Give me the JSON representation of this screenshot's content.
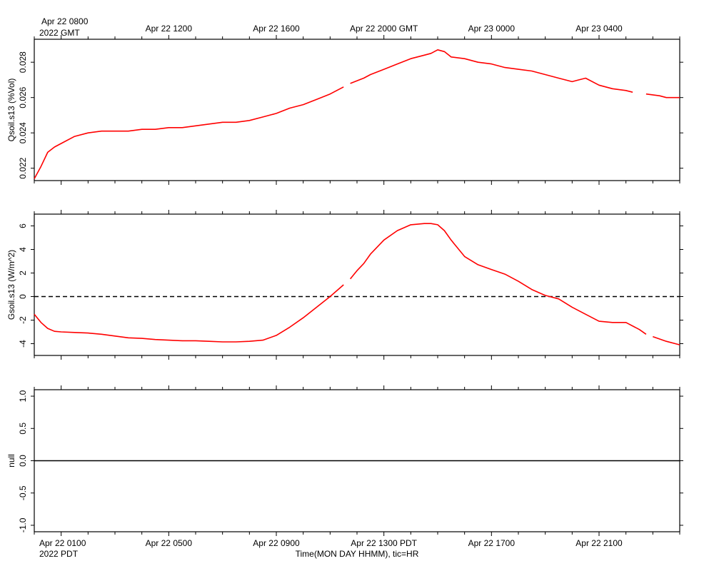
{
  "top_time_axis": {
    "tick_labels": [
      "Apr 22 0800",
      "Apr 22 1200",
      "Apr 22 1600",
      "Apr 22 2000 GMT",
      "Apr 23 0000",
      "Apr 23 0400"
    ],
    "year_label": "2022 GMT"
  },
  "bottom_time_axis": {
    "tick_labels": [
      "Apr 22 0100",
      "Apr 22 0500",
      "Apr 22 0900",
      "Apr 22 1300 PDT",
      "Apr 22 1700",
      "Apr 22 2100"
    ],
    "year_label": "2022 PDT",
    "xlabel": "Time(MON DAY HHMM), tic=HR"
  },
  "colors": {
    "series": "#ff0000",
    "axes": "#000000",
    "zero_line": "#000000"
  },
  "chart_data": [
    {
      "type": "line",
      "ylabel": "Qsoil.s13 (%Vol)",
      "ylim": [
        0.0213,
        0.0293
      ],
      "yticks": [
        "0.022",
        "0.024",
        "0.026",
        "0.028"
      ],
      "xlim_hours_pdt": [
        0.0,
        24.0
      ],
      "grid": false,
      "series": [
        {
          "x_hours_pdt": [
            0.0,
            0.25,
            0.5,
            0.75,
            1.0,
            1.5,
            2.0,
            2.5,
            3.0,
            3.5,
            4.0,
            4.5,
            5.0,
            5.5,
            6.0,
            6.5,
            7.0,
            7.5,
            8.0,
            8.5,
            9.0,
            9.5,
            10.0,
            10.5,
            11.0,
            11.5,
            11.75,
            12.25,
            12.5,
            13.0,
            13.5,
            14.0,
            14.5,
            14.75,
            15.0,
            15.25,
            15.5,
            16.0,
            16.5,
            17.0,
            17.5,
            18.0,
            18.5,
            19.0,
            19.5,
            20.0,
            20.25,
            20.5,
            21.0,
            21.5,
            22.0,
            22.25,
            22.75,
            23.25,
            23.5,
            24.0
          ],
          "y": [
            0.0214,
            0.0221,
            0.0229,
            0.0232,
            0.0234,
            0.0238,
            0.024,
            0.0241,
            0.0241,
            0.0241,
            0.0242,
            0.0242,
            0.0243,
            0.0243,
            0.0244,
            0.0245,
            0.0246,
            0.0246,
            0.0247,
            0.0249,
            0.0251,
            0.0254,
            0.0256,
            0.0259,
            0.0262,
            0.0266,
            0.0268,
            0.0271,
            0.0273,
            0.0276,
            0.0279,
            0.0282,
            0.0284,
            0.0285,
            0.0287,
            0.0286,
            0.0283,
            0.0282,
            0.028,
            0.0279,
            0.0277,
            0.0276,
            0.0275,
            0.0273,
            0.0271,
            0.0269,
            0.027,
            0.0271,
            0.0267,
            0.0265,
            0.0264,
            0.0263,
            0.0262,
            0.0261,
            0.026,
            0.026
          ],
          "gaps_after_index": [
            25,
            51
          ]
        }
      ]
    },
    {
      "type": "line",
      "ylabel": "Gsoil.s13 (W/m^2)",
      "ylim": [
        -5,
        7
      ],
      "yticks": [
        "-4",
        "-2",
        "0",
        "2",
        "4",
        "6"
      ],
      "reference_line": {
        "y": 0,
        "style": "dashed"
      },
      "xlim_hours_pdt": [
        0.0,
        24.0
      ],
      "grid": false,
      "series": [
        {
          "x_hours_pdt": [
            0.0,
            0.25,
            0.5,
            0.75,
            1.0,
            1.5,
            2.0,
            2.5,
            3.0,
            3.5,
            4.0,
            4.5,
            5.0,
            5.5,
            6.0,
            6.5,
            7.0,
            7.5,
            8.0,
            8.5,
            9.0,
            9.5,
            10.0,
            10.5,
            11.0,
            11.5,
            11.75,
            12.0,
            12.25,
            12.5,
            13.0,
            13.5,
            14.0,
            14.5,
            14.75,
            15.0,
            15.25,
            15.5,
            16.0,
            16.5,
            17.0,
            17.5,
            18.0,
            18.5,
            19.0,
            19.5,
            20.0,
            20.5,
            21.0,
            21.5,
            22.0,
            22.5,
            22.75,
            23.0,
            23.5,
            24.0
          ],
          "y": [
            -1.5,
            -2.2,
            -2.7,
            -2.95,
            -3.0,
            -3.05,
            -3.1,
            -3.2,
            -3.35,
            -3.5,
            -3.55,
            -3.65,
            -3.7,
            -3.75,
            -3.75,
            -3.8,
            -3.85,
            -3.85,
            -3.8,
            -3.7,
            -3.3,
            -2.6,
            -1.8,
            -0.9,
            0.0,
            1.0,
            1.5,
            2.2,
            2.8,
            3.6,
            4.8,
            5.6,
            6.1,
            6.2,
            6.2,
            6.1,
            5.6,
            4.8,
            3.4,
            2.7,
            2.3,
            1.9,
            1.3,
            0.6,
            0.1,
            -0.2,
            -0.9,
            -1.5,
            -2.1,
            -2.2,
            -2.2,
            -2.8,
            -3.2,
            -3.4,
            -3.8,
            -4.1
          ],
          "gaps_after_index": [
            25,
            52
          ]
        }
      ]
    },
    {
      "type": "line",
      "ylabel": "null",
      "ylim": [
        -1.1,
        1.1
      ],
      "yticks": [
        "-1.0",
        "-0.5",
        "0.0",
        "0.5",
        "1.0"
      ],
      "reference_line": {
        "y": 0,
        "style": "solid"
      },
      "xlim_hours_pdt": [
        0.0,
        24.0
      ],
      "grid": false,
      "series": []
    }
  ]
}
